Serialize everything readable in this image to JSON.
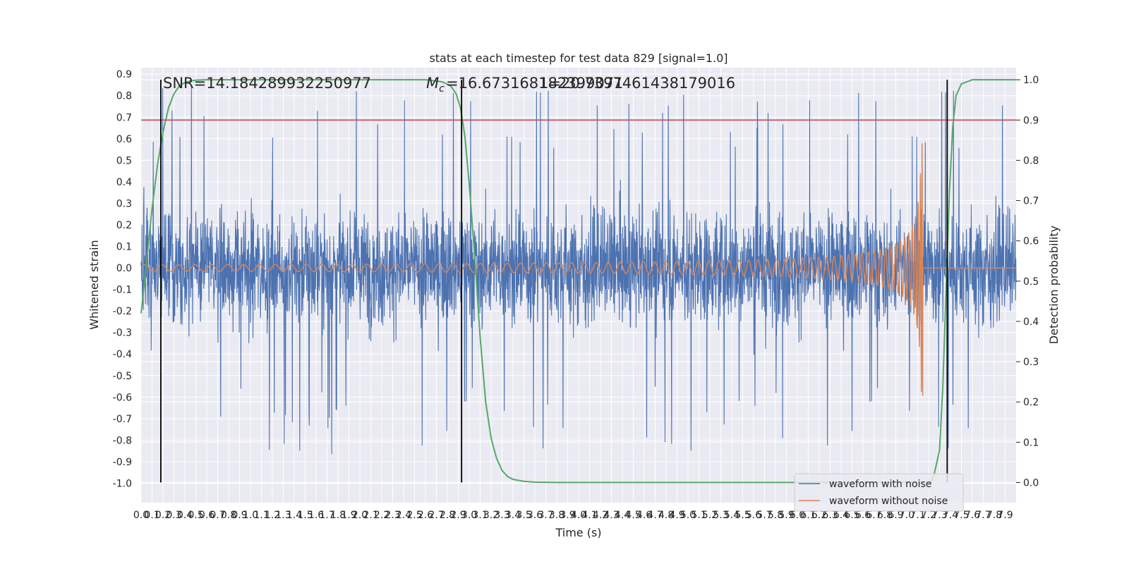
{
  "chart_data": {
    "type": "line",
    "title": "stats at each timestep for test data 829 [signal=1.0]",
    "xlabel": "Time (s)",
    "ylabel": "Whitened strain",
    "ylabel_right": "Detection probability",
    "xlim": [
      0.0,
      8.0
    ],
    "ylim": [
      -1.09,
      0.93
    ],
    "ylim_right": [
      -0.05,
      1.03
    ],
    "x_ticks": [
      0.0,
      0.1,
      0.2,
      0.3,
      0.4,
      0.5,
      0.6,
      0.7,
      0.8,
      0.9,
      1.0,
      1.1,
      1.2,
      1.3,
      1.4,
      1.5,
      1.6,
      1.7,
      1.8,
      1.9,
      2.0,
      2.1,
      2.2,
      2.3,
      2.4,
      2.5,
      2.6,
      2.7,
      2.8,
      2.9,
      3.0,
      3.1,
      3.2,
      3.3,
      3.4,
      3.5,
      3.6,
      3.7,
      3.8,
      3.9,
      4.0,
      4.1,
      4.2,
      4.3,
      4.4,
      4.5,
      4.6,
      4.7,
      4.8,
      4.9,
      5.0,
      5.1,
      5.2,
      5.3,
      5.4,
      5.5,
      5.6,
      5.7,
      5.8,
      5.9,
      6.0,
      6.1,
      6.2,
      6.3,
      6.4,
      6.5,
      6.6,
      6.7,
      6.8,
      6.9,
      7.0,
      7.1,
      7.2,
      7.3,
      7.4,
      7.5,
      7.6,
      7.7,
      7.8,
      7.9
    ],
    "y_ticks": [
      0.9,
      0.8,
      0.7,
      0.6,
      0.5,
      0.4,
      0.3,
      0.2,
      0.1,
      0.0,
      -0.1,
      -0.2,
      -0.3,
      -0.4,
      -0.5,
      -0.6,
      -0.7,
      -0.8,
      -0.9,
      -1.0
    ],
    "y_ticks_right": [
      1.0,
      0.9,
      0.8,
      0.7,
      0.6,
      0.5,
      0.4,
      0.3,
      0.2,
      0.1,
      0.0
    ],
    "annotations": {
      "snr": "SNR=14.184289932250977",
      "mc_label": "=16.673168182399071",
      "mc_overlap": "1=20.7397461438179016"
    },
    "threshold_right": 0.9,
    "vlines_x": [
      0.18,
      2.93,
      7.37
    ],
    "series": [
      {
        "name": "waveform with noise",
        "color": "#4c72b0",
        "noise_amplitude": 0.45,
        "peak_range": [
          -1.0,
          0.87
        ]
      },
      {
        "name": "waveform without noise",
        "color": "#dd8452",
        "chirp_end_x": 7.15,
        "peak_amplitude": 0.6,
        "start_amplitude": 0.015
      },
      {
        "name": "detection probability",
        "color": "#55a868",
        "axis": "right",
        "x": [
          0.0,
          0.05,
          0.1,
          0.15,
          0.2,
          0.25,
          0.3,
          0.35,
          0.4,
          0.45,
          0.5,
          0.6,
          0.8,
          1.2,
          2.0,
          2.6,
          2.75,
          2.83,
          2.88,
          2.92,
          2.96,
          3.0,
          3.05,
          3.1,
          3.15,
          3.2,
          3.25,
          3.3,
          3.35,
          3.4,
          3.5,
          3.6,
          3.8,
          4.5,
          6.0,
          6.8,
          7.0,
          7.1,
          7.15,
          7.18,
          7.22,
          7.25,
          7.3,
          7.33,
          7.36,
          7.39,
          7.42,
          7.45,
          7.5,
          7.6,
          7.9,
          8.0
        ],
        "y": [
          0.42,
          0.55,
          0.68,
          0.79,
          0.87,
          0.93,
          0.965,
          0.985,
          0.993,
          0.997,
          0.999,
          1.0,
          1.0,
          1.0,
          1.0,
          1.0,
          0.995,
          0.985,
          0.965,
          0.93,
          0.86,
          0.74,
          0.56,
          0.36,
          0.2,
          0.11,
          0.06,
          0.03,
          0.015,
          0.008,
          0.003,
          0.001,
          0.0,
          0.0,
          0.0,
          0.0,
          0.0,
          0.0,
          0.0,
          0.0,
          0.0,
          0.02,
          0.08,
          0.24,
          0.48,
          0.72,
          0.88,
          0.96,
          0.99,
          1.0,
          1.0,
          1.0
        ]
      }
    ],
    "legend": {
      "placement": "lower-right",
      "entries": [
        "waveform with noise",
        "waveform without noise"
      ]
    },
    "grid": true,
    "colors": {
      "background": "#eaeaf2",
      "grid": "#ffffff",
      "threshold": "#c44e52",
      "vline": "#000000"
    }
  }
}
